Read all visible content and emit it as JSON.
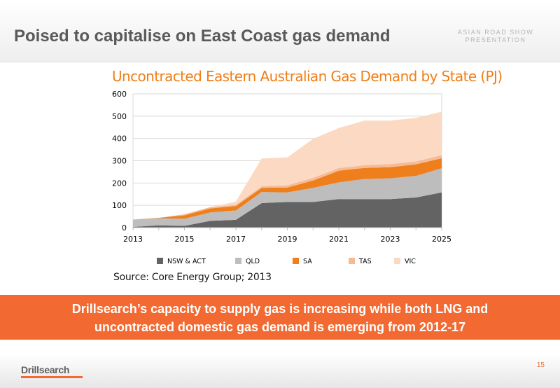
{
  "slide": {
    "title": "Poised to capitalise on East Coast gas demand",
    "roadshow_line1": "ASIAN ROAD SHOW",
    "roadshow_line2": "PRESENTATION",
    "source": "Source: Core Energy Group; 2013",
    "banner_line1": "Drillsearch’s capacity to supply gas is increasing while both LNG and",
    "banner_line2": "uncontracted domestic gas demand is emerging from 2012-17",
    "logo": "Drillsearch",
    "page_number": "15",
    "accent_color": "#f26a31"
  },
  "chart_data": {
    "type": "area",
    "stacked": true,
    "title": "Uncontracted Eastern Australian Gas Demand by State (PJ)",
    "xlabel": "",
    "ylabel": "",
    "x": [
      2013,
      2014,
      2015,
      2016,
      2017,
      2018,
      2019,
      2020,
      2021,
      2022,
      2023,
      2024,
      2025
    ],
    "xticks": [
      2013,
      2015,
      2017,
      2019,
      2021,
      2023,
      2025
    ],
    "yticks": [
      0,
      100,
      200,
      300,
      400,
      500,
      600
    ],
    "ylim": [
      0,
      600
    ],
    "grid": "horizontal",
    "legend": "bottom",
    "series": [
      {
        "name": "NSW & ACT",
        "color": "#636363",
        "values": [
          3,
          10,
          8,
          30,
          35,
          110,
          115,
          115,
          128,
          128,
          128,
          135,
          158
        ]
      },
      {
        "name": "QLD",
        "color": "#bdbdbd",
        "values": [
          33,
          32,
          32,
          38,
          42,
          50,
          43,
          63,
          75,
          90,
          93,
          97,
          108
        ]
      },
      {
        "name": "SA",
        "color": "#ef7e1c",
        "values": [
          0,
          2,
          15,
          18,
          20,
          18,
          22,
          33,
          52,
          50,
          50,
          52,
          45
        ]
      },
      {
        "name": "TAS",
        "color": "#f6bb94",
        "values": [
          0,
          0,
          5,
          6,
          5,
          7,
          10,
          12,
          12,
          12,
          14,
          13,
          14
        ]
      },
      {
        "name": "VIC",
        "color": "#fbd9c2",
        "values": [
          0,
          0,
          0,
          0,
          15,
          125,
          125,
          175,
          180,
          200,
          195,
          195,
          195
        ]
      }
    ]
  }
}
